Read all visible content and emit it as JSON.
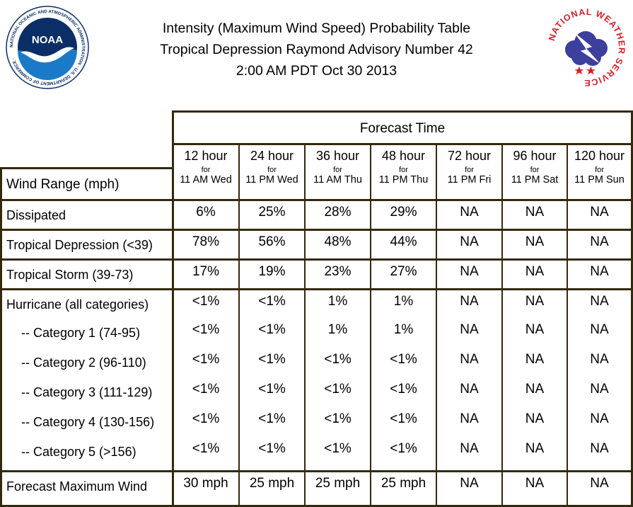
{
  "title": {
    "line1": "Intensity (Maximum Wind Speed) Probability Table",
    "line2": "Tropical Depression Raymond Advisory Number 42",
    "line3": "2:00 AM PDT Oct 30 2013"
  },
  "noaa_logo": {
    "text": "NOAA",
    "ring_text": "NATIONAL OCEANIC AND ATMOSPHERIC ADMINISTRATION · U.S. DEPARTMENT OF COMMERCE ·",
    "colors": {
      "ring": "#ffffff",
      "disc": "#1a56a0",
      "dark": "#0b2e66",
      "bird": "#ffffff"
    }
  },
  "nws_logo": {
    "ring_text": "NATIONAL WEATHER SERVICE",
    "colors": {
      "text": "#d42128",
      "cloud": "#3d3f9c",
      "bolt": "#ffffff",
      "star": "#d42128"
    }
  },
  "table": {
    "forecast_time_label": "Forecast Time",
    "row_header_label": "Wind Range (mph)",
    "for_word": "for",
    "columns": [
      {
        "hours": "12 hour",
        "when": "11 AM Wed"
      },
      {
        "hours": "24 hour",
        "when": "11 PM Wed"
      },
      {
        "hours": "36 hour",
        "when": "11 AM Thu"
      },
      {
        "hours": "48 hour",
        "when": "11 PM Thu"
      },
      {
        "hours": "72 hour",
        "when": "11 PM Fri"
      },
      {
        "hours": "96 hour",
        "when": "11 PM Sat"
      },
      {
        "hours": "120 hour",
        "when": "11 PM Sun"
      }
    ],
    "rows": [
      {
        "label": "Dissipated",
        "values": [
          "6%",
          "25%",
          "28%",
          "29%",
          "NA",
          "NA",
          "NA"
        ]
      },
      {
        "label": "Tropical Depression (<39)",
        "values": [
          "78%",
          "56%",
          "48%",
          "44%",
          "NA",
          "NA",
          "NA"
        ]
      },
      {
        "label": "Tropical Storm (39-73)",
        "values": [
          "17%",
          "19%",
          "23%",
          "27%",
          "NA",
          "NA",
          "NA"
        ]
      },
      {
        "label": "Hurricane (all categories)",
        "values": [
          "<1%",
          "<1%",
          "1%",
          "1%",
          "NA",
          "NA",
          "NA"
        ]
      },
      {
        "label": "-- Category 1 (74-95)",
        "values": [
          "<1%",
          "<1%",
          "1%",
          "1%",
          "NA",
          "NA",
          "NA"
        ]
      },
      {
        "label": "-- Category 2 (96-110)",
        "values": [
          "<1%",
          "<1%",
          "<1%",
          "<1%",
          "NA",
          "NA",
          "NA"
        ]
      },
      {
        "label": "-- Category 3 (111-129)",
        "values": [
          "<1%",
          "<1%",
          "<1%",
          "<1%",
          "NA",
          "NA",
          "NA"
        ]
      },
      {
        "label": "-- Category 4 (130-156)",
        "values": [
          "<1%",
          "<1%",
          "<1%",
          "<1%",
          "NA",
          "NA",
          "NA"
        ]
      },
      {
        "label": "-- Category 5 (>156)",
        "values": [
          "<1%",
          "<1%",
          "<1%",
          "<1%",
          "NA",
          "NA",
          "NA"
        ]
      },
      {
        "label": "Forecast Maximum Wind",
        "values": [
          "30 mph",
          "25 mph",
          "25 mph",
          "25 mph",
          "NA",
          "NA",
          "NA"
        ]
      }
    ]
  }
}
